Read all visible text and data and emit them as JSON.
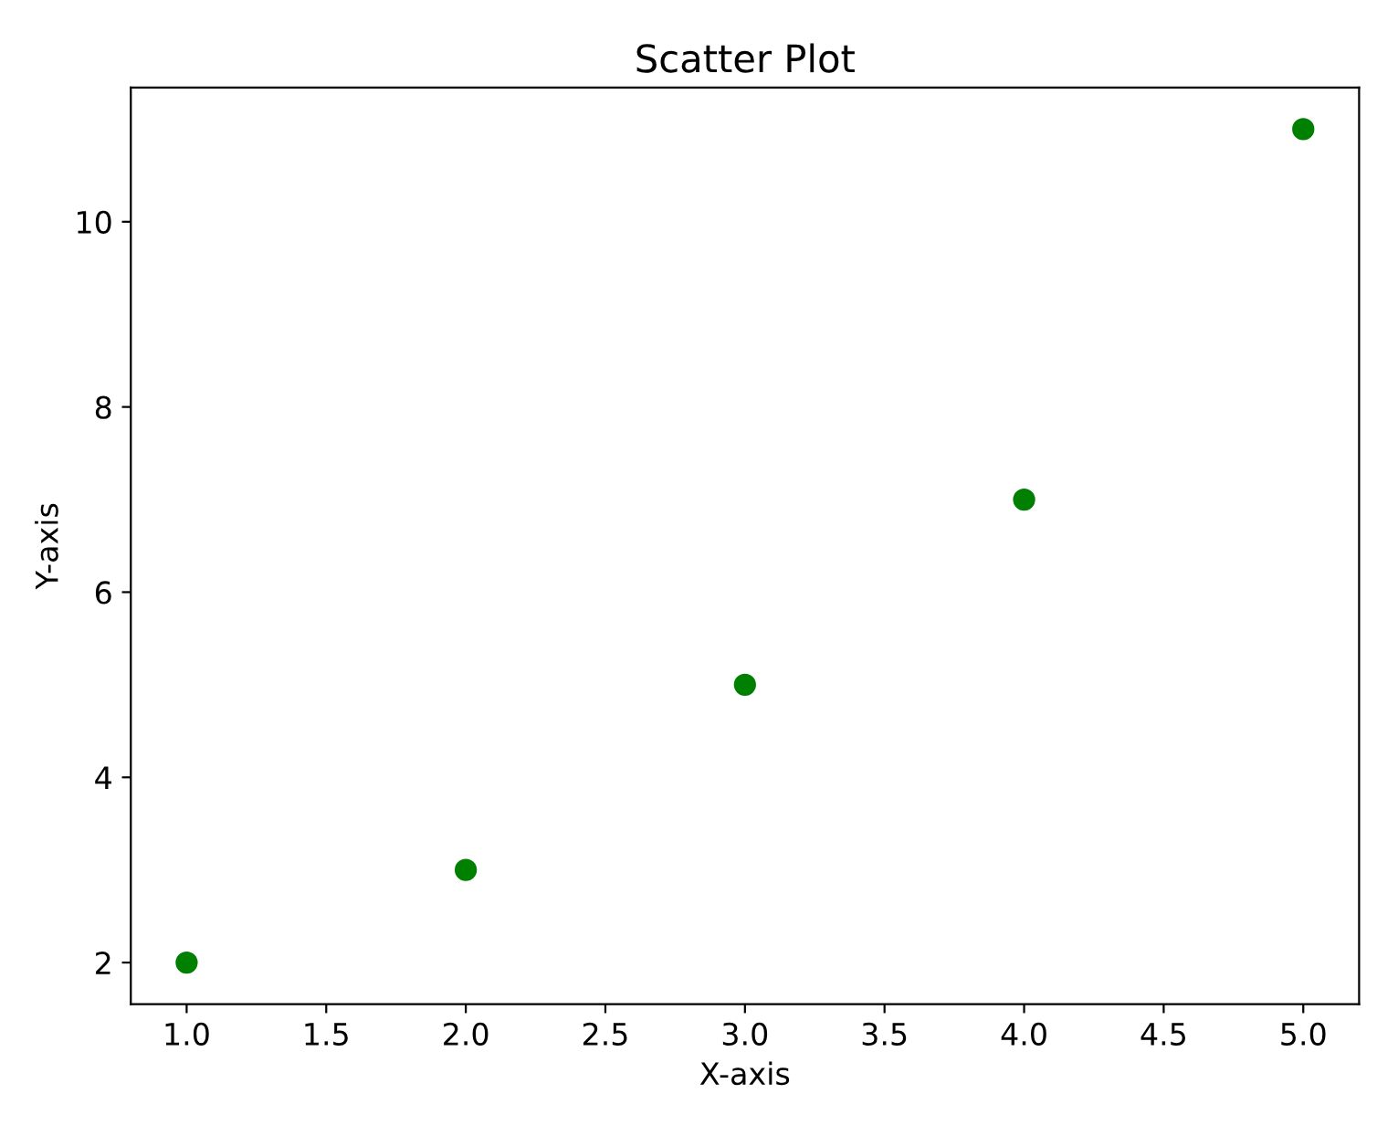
{
  "chart_data": {
    "type": "scatter",
    "title": "Scatter Plot",
    "xlabel": "X-axis",
    "ylabel": "Y-axis",
    "x": [
      1,
      2,
      3,
      4,
      5
    ],
    "series": [
      {
        "color": "#008000",
        "values": [
          2,
          3,
          5,
          7,
          11
        ]
      }
    ],
    "marker": "circle",
    "xlim": [
      0.8,
      5.2
    ],
    "ylim": [
      1.55,
      11.45
    ],
    "xticks": [
      {
        "value": 1,
        "label": "1.0"
      },
      {
        "value": 1.5,
        "label": "1.5"
      },
      {
        "value": 2,
        "label": "2.0"
      },
      {
        "value": 2.5,
        "label": "2.5"
      },
      {
        "value": 3,
        "label": "3.0"
      },
      {
        "value": 3.5,
        "label": "3.5"
      },
      {
        "value": 4,
        "label": "4.0"
      },
      {
        "value": 4.5,
        "label": "4.5"
      },
      {
        "value": 5,
        "label": "5.0"
      }
    ],
    "yticks": [
      2,
      4,
      6,
      8,
      10
    ]
  }
}
